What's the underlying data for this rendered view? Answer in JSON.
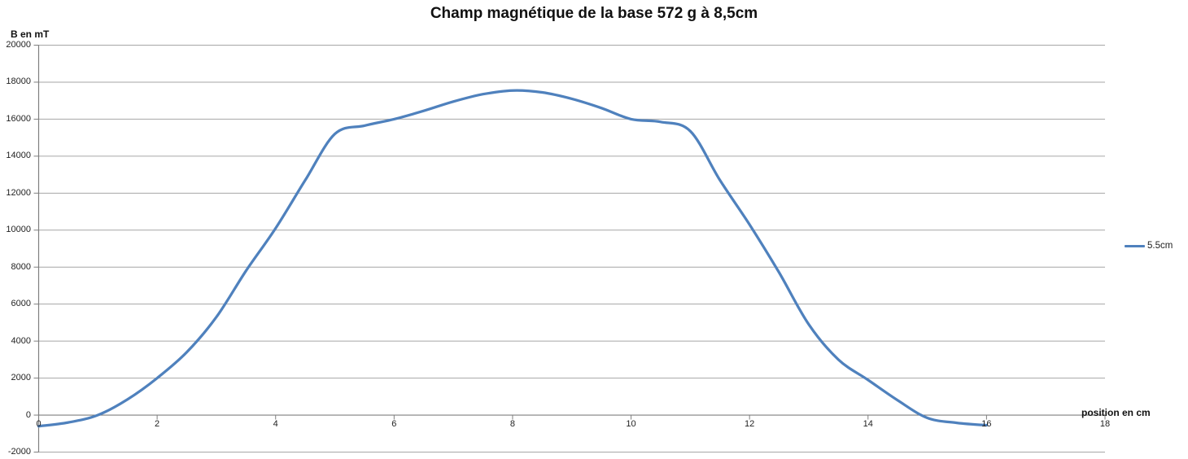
{
  "chart_data": {
    "type": "line",
    "title": "Champ magnétique de la base 572 g à 8,5cm",
    "xlabel": "position en cm",
    "ylabel": "B en mT",
    "xlim": [
      0,
      18
    ],
    "ylim": [
      -2000,
      20000
    ],
    "xticks": [
      0,
      2,
      4,
      6,
      8,
      10,
      12,
      14,
      16,
      18
    ],
    "yticks": [
      20000,
      18000,
      16000,
      14000,
      12000,
      10000,
      8000,
      6000,
      4000,
      2000,
      0,
      -2000
    ],
    "grid": "horizontal",
    "smooth": true,
    "legend_position": "right",
    "series": [
      {
        "name": "5.5cm",
        "color": "#4F81BD",
        "x": [
          0,
          0.5,
          1,
          1.5,
          2,
          2.5,
          3,
          3.5,
          4,
          4.5,
          5,
          5.5,
          6,
          6.5,
          7,
          7.5,
          8,
          8.5,
          9,
          9.5,
          10,
          10.5,
          11,
          11.5,
          12,
          12.5,
          13,
          13.5,
          14,
          14.5,
          15,
          15.5,
          16
        ],
        "y": [
          -600,
          -400,
          0,
          850,
          2000,
          3400,
          5300,
          7800,
          10100,
          12700,
          15200,
          15650,
          16000,
          16450,
          16950,
          17350,
          17550,
          17450,
          17100,
          16600,
          16000,
          15850,
          15350,
          12700,
          10300,
          7700,
          4900,
          3000,
          1900,
          800,
          -150,
          -420,
          -550
        ]
      }
    ]
  },
  "colors": {
    "background": "#ffffff",
    "gridline": "#a6a6a6",
    "axis": "#7f7f7f",
    "series_blue": "#4F81BD",
    "text": "#1f1f1f"
  }
}
